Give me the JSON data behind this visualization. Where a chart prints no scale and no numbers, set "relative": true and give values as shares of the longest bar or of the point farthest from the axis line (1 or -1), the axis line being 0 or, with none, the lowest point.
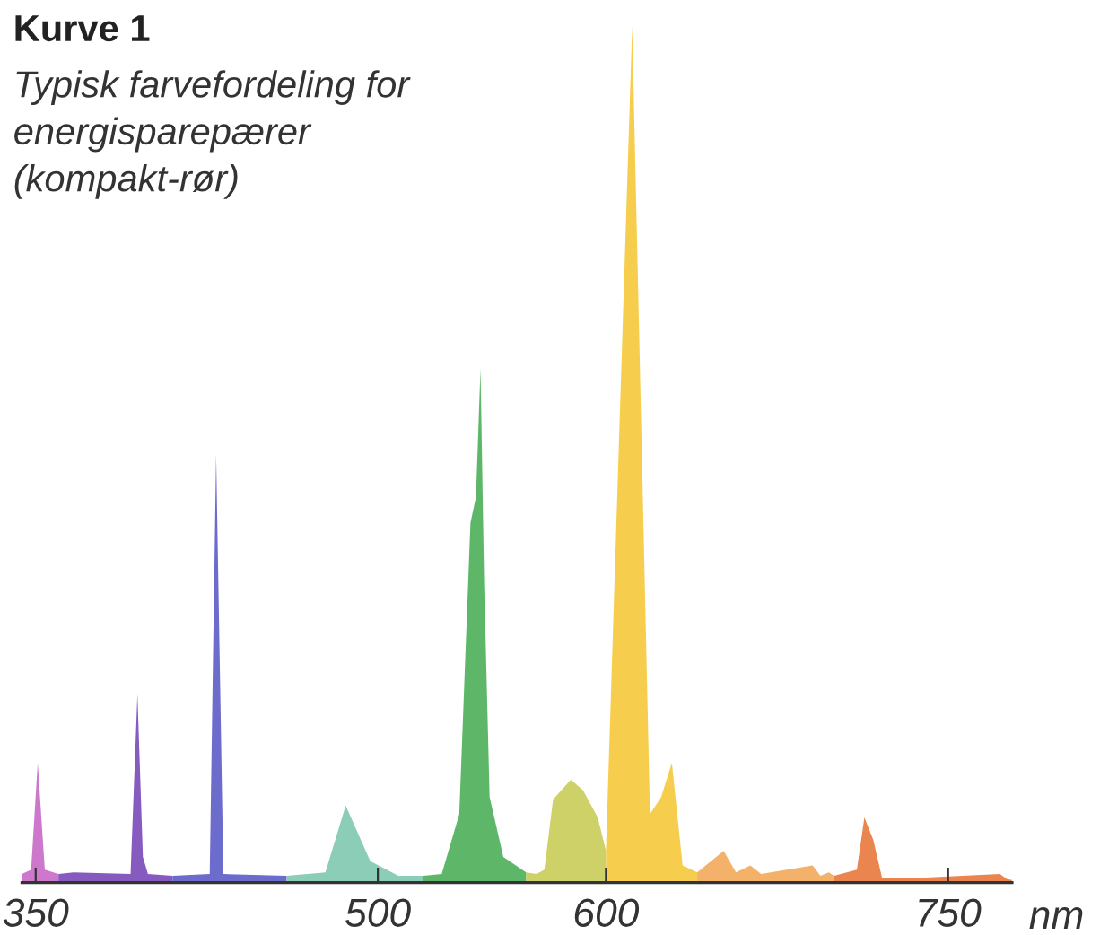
{
  "chart_data": {
    "type": "area",
    "title": "Kurve 1",
    "subtitle": "Typisk farvefordeling for\nenergisparepærer\n(kompakt-rør)",
    "xlabel": "nm",
    "relative": true,
    "xlim": [
      344,
      778
    ],
    "xticks": [
      350,
      500,
      600,
      750
    ],
    "grid": false,
    "legend": false,
    "series": [
      {
        "color": "#c868c8",
        "x": [
          344,
          348,
          350.9,
          354,
          360
        ],
        "values": [
          0.01,
          0.015,
          0.14,
          0.015,
          0.01
        ]
      },
      {
        "color": "#7a48b8",
        "x": [
          360,
          366.6,
          391.6,
          394.6,
          397,
          399.2,
          410
        ],
        "values": [
          0.01,
          0.012,
          0.01,
          0.22,
          0.03,
          0.01,
          0.008
        ]
      },
      {
        "color": "#5c5cc8",
        "x": [
          410,
          426.3,
          429.1,
          432.3,
          460
        ],
        "values": [
          0.008,
          0.01,
          0.5,
          0.01,
          0.008
        ]
      },
      {
        "color": "#80c8b0",
        "x": [
          460,
          477,
          485.9,
          496.7,
          509,
          520
        ],
        "values": [
          0.008,
          0.012,
          0.09,
          0.025,
          0.008,
          0.008
        ]
      },
      {
        "color": "#4caf58",
        "x": [
          520,
          528,
          535.7,
          540.6,
          543,
          545,
          546.6,
          549,
          555,
          565
        ],
        "values": [
          0.008,
          0.01,
          0.08,
          0.42,
          0.45,
          0.6,
          0.35,
          0.1,
          0.03,
          0.012
        ]
      },
      {
        "color": "#c8cc58",
        "x": [
          565,
          569.6,
          573,
          576.8,
          584.6,
          589.9,
          596.4,
          600
        ],
        "values": [
          0.012,
          0.01,
          0.015,
          0.097,
          0.12,
          0.108,
          0.076,
          0.037
        ]
      },
      {
        "color": "#f5c838",
        "x": [
          600,
          611.5,
          619.3,
          624.2,
          628.9,
          633.6,
          640
        ],
        "values": [
          0.037,
          1.0,
          0.08,
          0.1,
          0.14,
          0.02,
          0.012
        ]
      },
      {
        "color": "#f2a85a",
        "x": [
          640,
          651.6,
          657,
          663.3,
          668,
          690.6,
          694,
          697.7,
          700
        ],
        "values": [
          0.012,
          0.037,
          0.012,
          0.02,
          0.01,
          0.02,
          0.008,
          0.012,
          0.008
        ]
      },
      {
        "color": "#e8783c",
        "x": [
          700,
          710,
          713.3,
          717.2,
          721.1,
          740,
          772.7,
          775.8,
          778
        ],
        "values": [
          0.008,
          0.015,
          0.076,
          0.05,
          0.005,
          0.006,
          0.01,
          0.004,
          0.003
        ]
      }
    ]
  }
}
